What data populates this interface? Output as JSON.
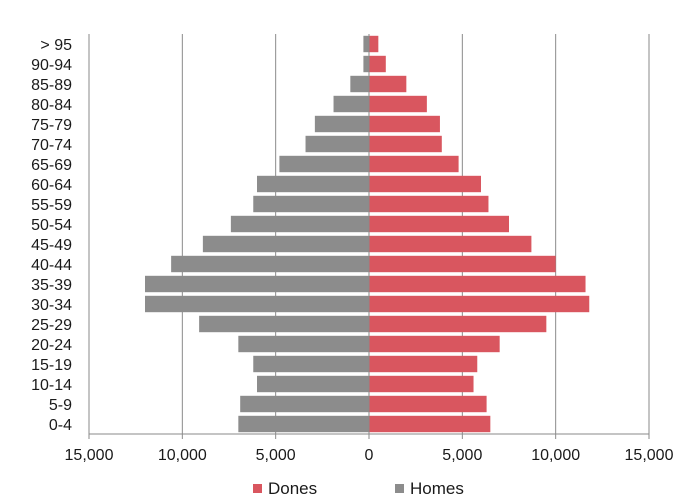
{
  "chart_data": {
    "type": "bar",
    "orientation": "horizontal",
    "layout": "population-pyramid",
    "categories": [
      "0-4",
      "5-9",
      "10-14",
      "15-19",
      "20-24",
      "25-29",
      "30-34",
      "35-39",
      "40-44",
      "45-49",
      "50-54",
      "55-59",
      "60-64",
      "65-69",
      "70-74",
      "75-79",
      "80-84",
      "85-89",
      "90-94",
      "> 95"
    ],
    "series": [
      {
        "name": "Homes",
        "side": "left",
        "color": "#8c8c8c",
        "values": [
          7000,
          6900,
          6000,
          6200,
          7000,
          9100,
          12000,
          12000,
          10600,
          8900,
          7400,
          6200,
          6000,
          4800,
          3400,
          2900,
          1900,
          1000,
          300,
          300
        ]
      },
      {
        "name": "Dones",
        "side": "right",
        "color": "#d9565f",
        "values": [
          6500,
          6300,
          5600,
          5800,
          7000,
          9500,
          11800,
          11600,
          10000,
          8700,
          7500,
          6400,
          6000,
          4800,
          3900,
          3800,
          3100,
          2000,
          900,
          500
        ]
      }
    ],
    "xticks": [
      "15,000",
      "10,000",
      "5,000",
      "0",
      "5,000",
      "10,000",
      "15,000"
    ],
    "xlim": [
      -15000,
      15000
    ],
    "legend": {
      "position": "bottom",
      "items": [
        "Dones",
        "Homes"
      ]
    },
    "grid": {
      "vertical": true,
      "horizontal": false
    },
    "title": "",
    "xlabel": "",
    "ylabel": ""
  }
}
